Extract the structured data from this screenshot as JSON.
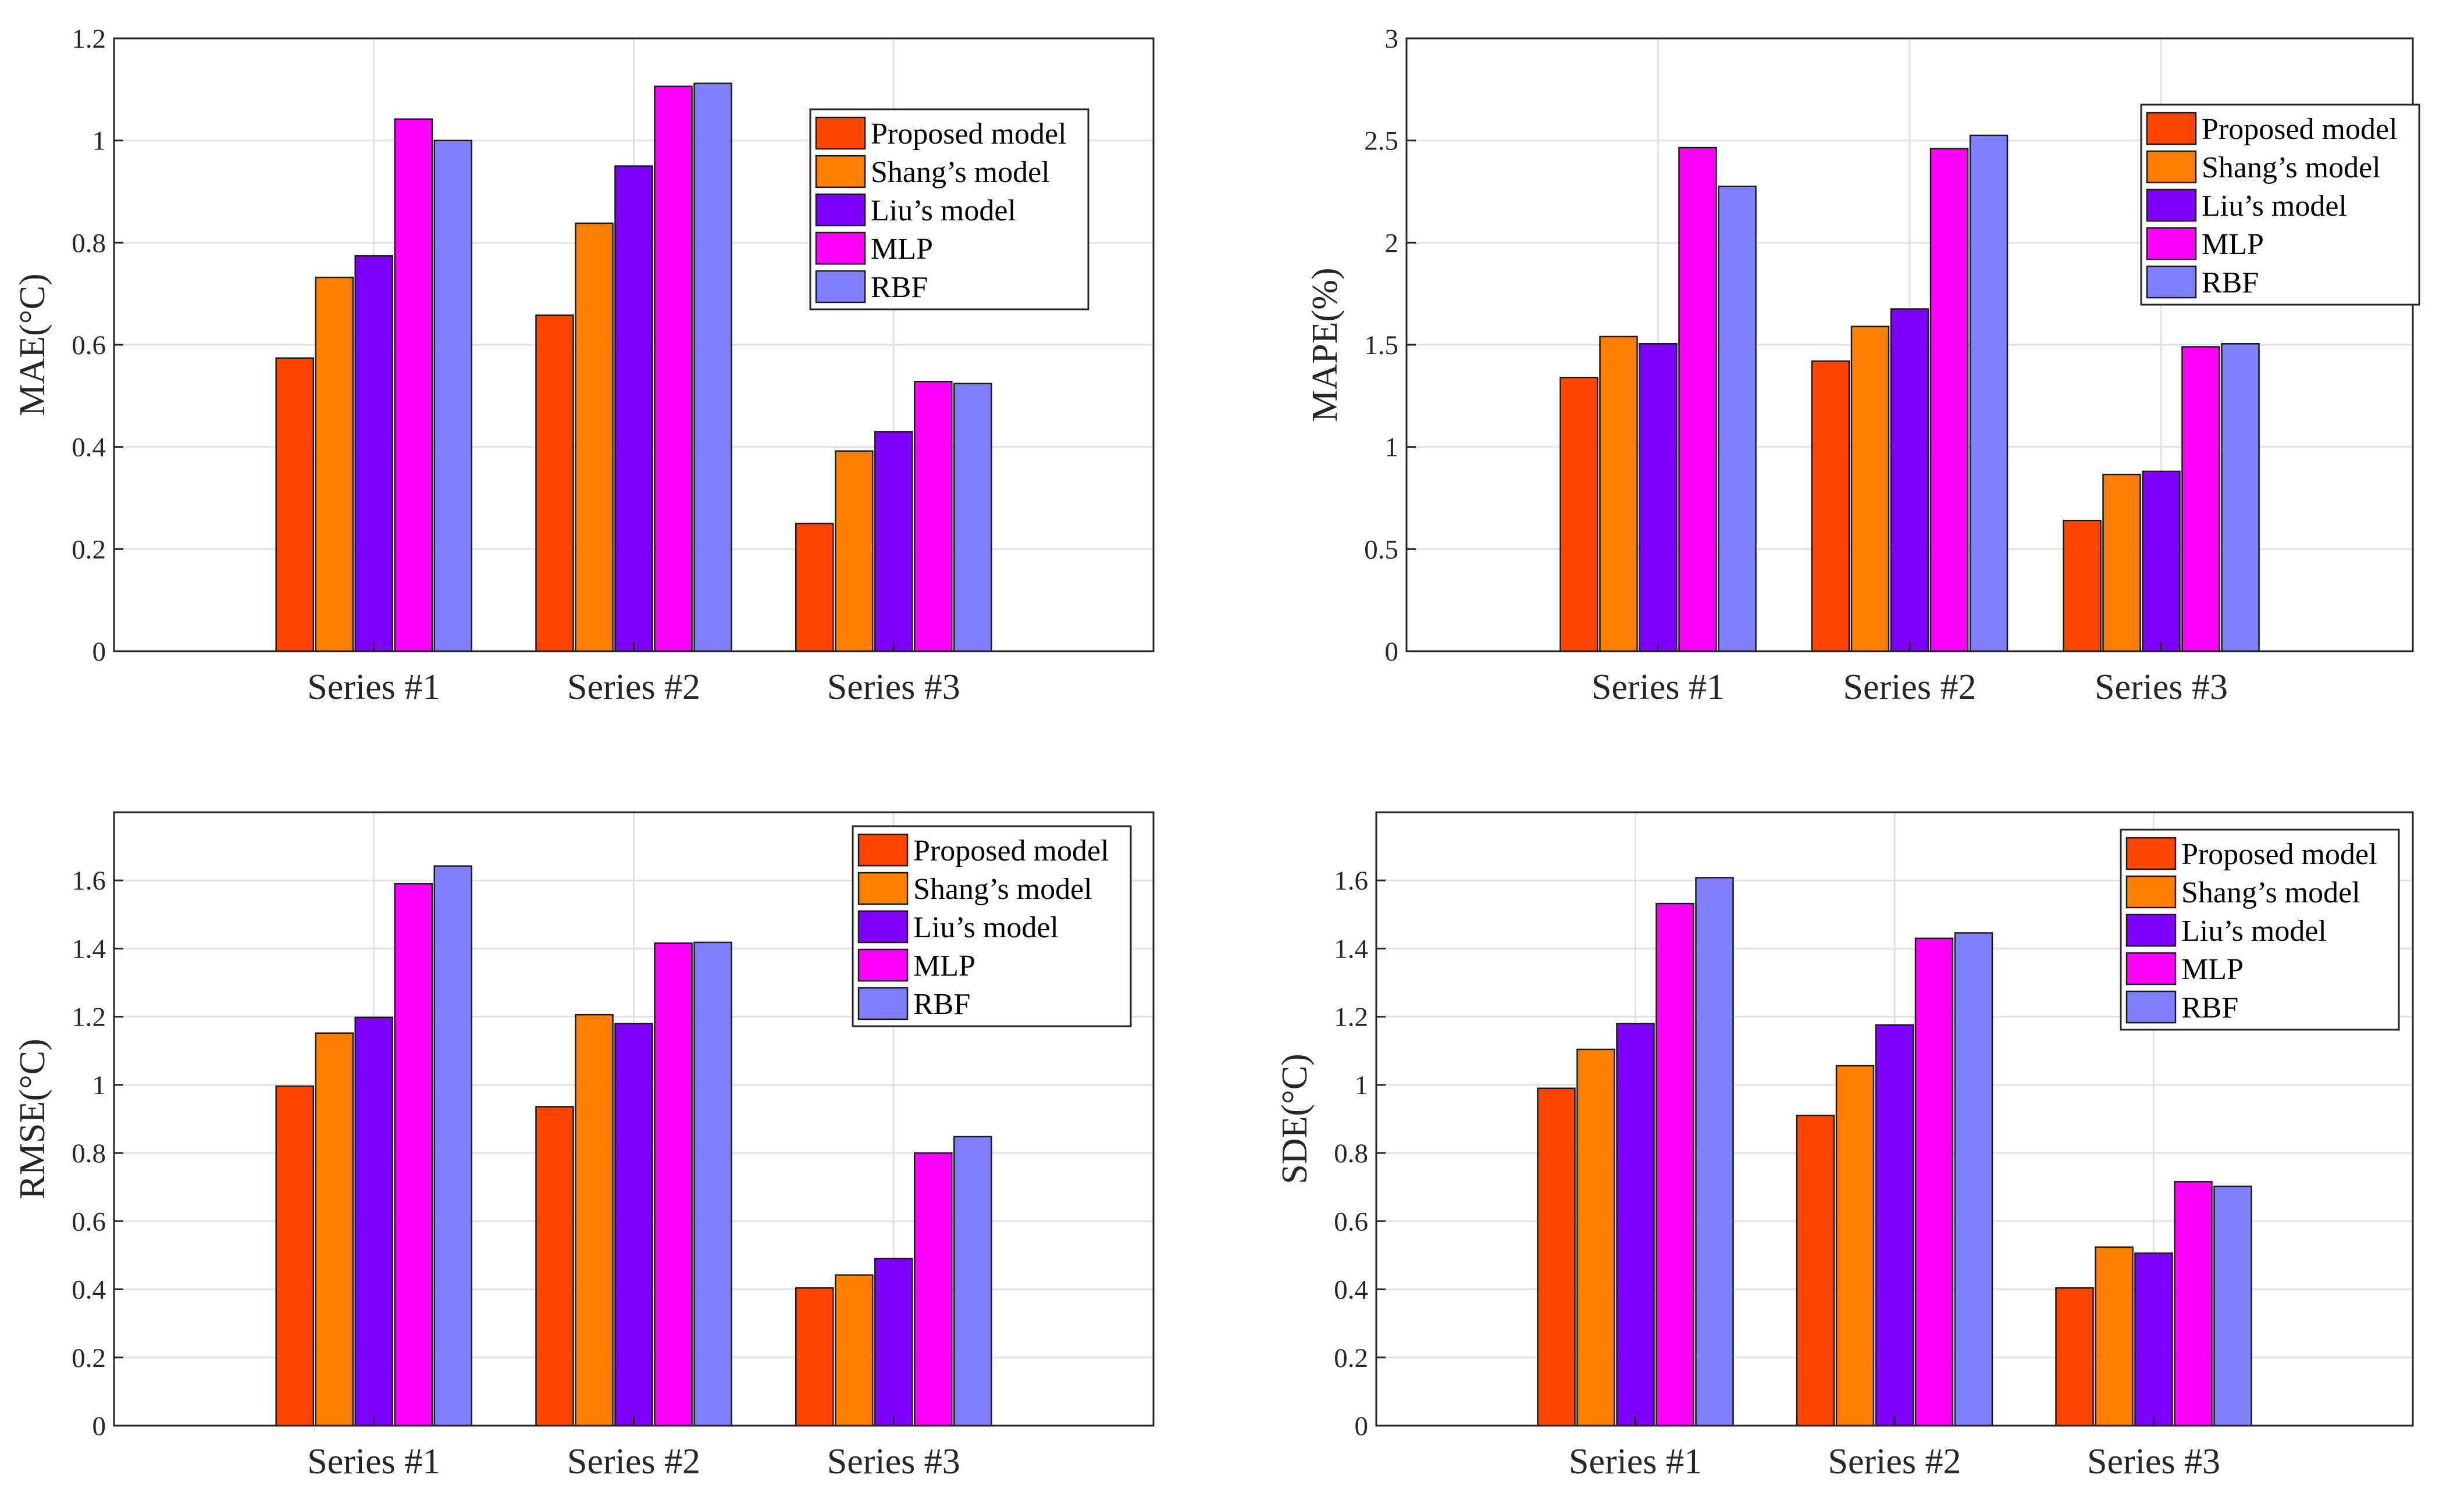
{
  "chart_data": [
    {
      "type": "bar",
      "ylabel": "MAE(°C)",
      "ylim": [
        0,
        1.2
      ],
      "yticks": [
        "0",
        "0.2",
        "0.4",
        "0.6",
        "0.8",
        "1",
        "1.2"
      ],
      "categories": [
        "Series #1",
        "Series #2",
        "Series #3"
      ],
      "series": [
        {
          "name": "Proposed model",
          "color": "#FF4500",
          "values": [
            0.574,
            0.658,
            0.25
          ]
        },
        {
          "name": "Shang's model",
          "color": "#FF8000",
          "values": [
            0.732,
            0.838,
            0.392
          ]
        },
        {
          "name": "Liu's model",
          "color": "#8000FF",
          "values": [
            0.774,
            0.95,
            0.43
          ]
        },
        {
          "name": "MLP",
          "color": "#FF00FF",
          "values": [
            1.042,
            1.106,
            0.528
          ]
        },
        {
          "name": "RBF",
          "color": "#8080FF",
          "values": [
            1.0,
            1.112,
            0.524
          ]
        }
      ],
      "legend": "top-right",
      "grid": true
    },
    {
      "type": "bar",
      "ylabel": "MAPE(%)",
      "ylim": [
        0,
        3
      ],
      "yticks": [
        "0",
        "0.5",
        "1",
        "1.5",
        "2",
        "2.5",
        "3"
      ],
      "categories": [
        "Series #1",
        "Series #2",
        "Series #3"
      ],
      "series": [
        {
          "name": "Proposed model",
          "color": "#FF4500",
          "values": [
            1.34,
            1.42,
            0.64
          ]
        },
        {
          "name": "Shang's model",
          "color": "#FF8000",
          "values": [
            1.54,
            1.59,
            0.865
          ]
        },
        {
          "name": "Liu's model",
          "color": "#8000FF",
          "values": [
            1.505,
            1.675,
            0.88
          ]
        },
        {
          "name": "MLP",
          "color": "#FF00FF",
          "values": [
            2.465,
            2.46,
            1.49
          ]
        },
        {
          "name": "RBF",
          "color": "#8080FF",
          "values": [
            2.275,
            2.525,
            1.505
          ]
        }
      ],
      "legend": "top-right",
      "grid": true
    },
    {
      "type": "bar",
      "ylabel": "RMSE(°C)",
      "ylim": [
        0,
        1.8
      ],
      "yticks": [
        "0",
        "0.2",
        "0.4",
        "0.6",
        "0.8",
        "1",
        "1.2",
        "1.4",
        "1.6"
      ],
      "categories": [
        "Series #1",
        "Series #2",
        "Series #3"
      ],
      "series": [
        {
          "name": "Proposed model",
          "color": "#FF4500",
          "values": [
            0.996,
            0.936,
            0.404
          ]
        },
        {
          "name": "Shang's model",
          "color": "#FF8000",
          "values": [
            1.152,
            1.206,
            0.442
          ]
        },
        {
          "name": "Liu's model",
          "color": "#8000FF",
          "values": [
            1.198,
            1.18,
            0.49
          ]
        },
        {
          "name": "MLP",
          "color": "#FF00FF",
          "values": [
            1.59,
            1.416,
            0.8
          ]
        },
        {
          "name": "RBF",
          "color": "#8080FF",
          "values": [
            1.642,
            1.418,
            0.848
          ]
        }
      ],
      "legend": "top-right",
      "grid": true
    },
    {
      "type": "bar",
      "ylabel": "SDE(°C)",
      "ylim": [
        0,
        1.8
      ],
      "yticks": [
        "0",
        "0.2",
        "0.4",
        "0.6",
        "0.8",
        "1",
        "1.2",
        "1.4",
        "1.6"
      ],
      "categories": [
        "Series #1",
        "Series #2",
        "Series #3"
      ],
      "series": [
        {
          "name": "Proposed model",
          "color": "#FF4500",
          "values": [
            0.99,
            0.91,
            0.404
          ]
        },
        {
          "name": "Shang's model",
          "color": "#FF8000",
          "values": [
            1.104,
            1.056,
            0.524
          ]
        },
        {
          "name": "Liu's model",
          "color": "#8000FF",
          "values": [
            1.18,
            1.176,
            0.506
          ]
        },
        {
          "name": "MLP",
          "color": "#FF00FF",
          "values": [
            1.532,
            1.43,
            0.716
          ]
        },
        {
          "name": "RBF",
          "color": "#8080FF",
          "values": [
            1.608,
            1.446,
            0.702
          ]
        }
      ],
      "legend": "top-right",
      "grid": true
    }
  ]
}
